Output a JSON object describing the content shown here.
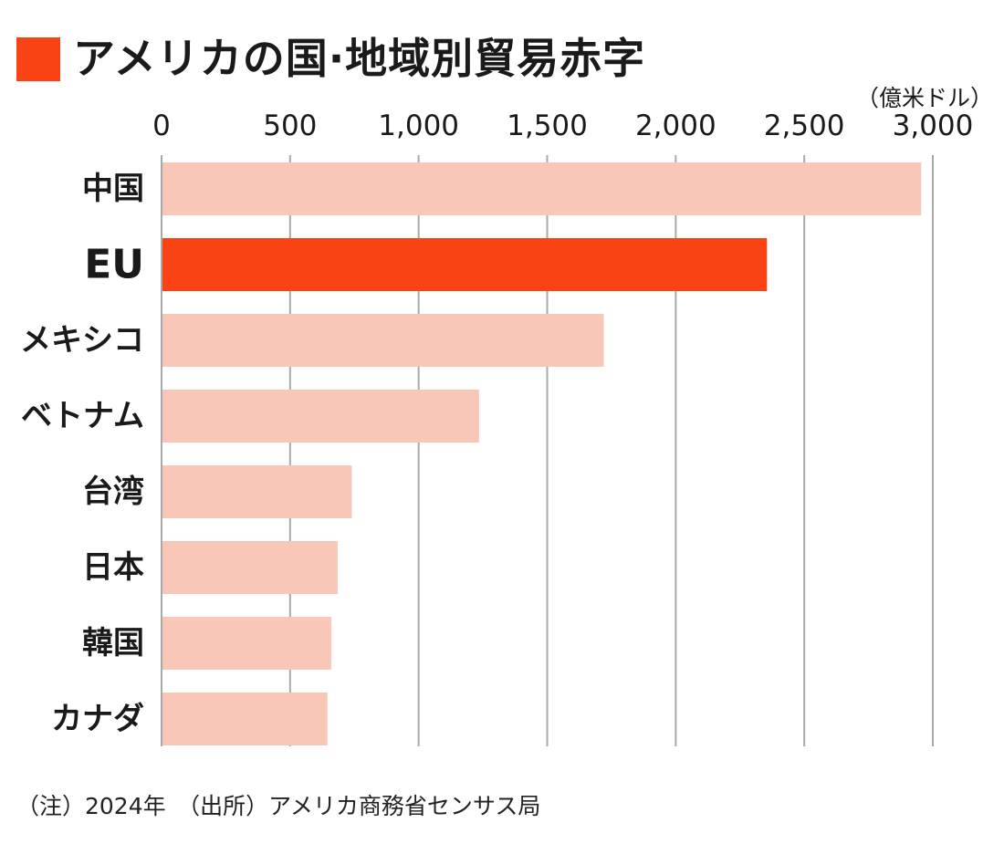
{
  "colors": {
    "accent": "#fa4314",
    "bar": "#f9c7b7",
    "grid": "#a9a9a9",
    "text": "#1a1a1a"
  },
  "header": {
    "title": "アメリカの国·地域別貿易赤字",
    "unit": "（億米ドル）"
  },
  "footnote": "（注）2024年　（出所）アメリカ商務省センサス局",
  "chart_data": {
    "type": "bar",
    "orientation": "horizontal",
    "title": "アメリカの国·地域別貿易赤字",
    "unit": "（億米ドル）",
    "categories": [
      "中国",
      "EU",
      "メキシコ",
      "ベトナム",
      "台湾",
      "日本",
      "韓国",
      "カナダ"
    ],
    "values": [
      2955,
      2355,
      1720,
      1235,
      740,
      685,
      660,
      645
    ],
    "highlight": "EU",
    "xlim": [
      0,
      3000
    ],
    "ticks": [
      0,
      500,
      1000,
      1500,
      2000,
      2500,
      3000
    ],
    "tick_labels": [
      "0",
      "500",
      "1,000",
      "1,500",
      "2,000",
      "2,500",
      "3,000"
    ],
    "axis_position": "top",
    "grid": true
  }
}
